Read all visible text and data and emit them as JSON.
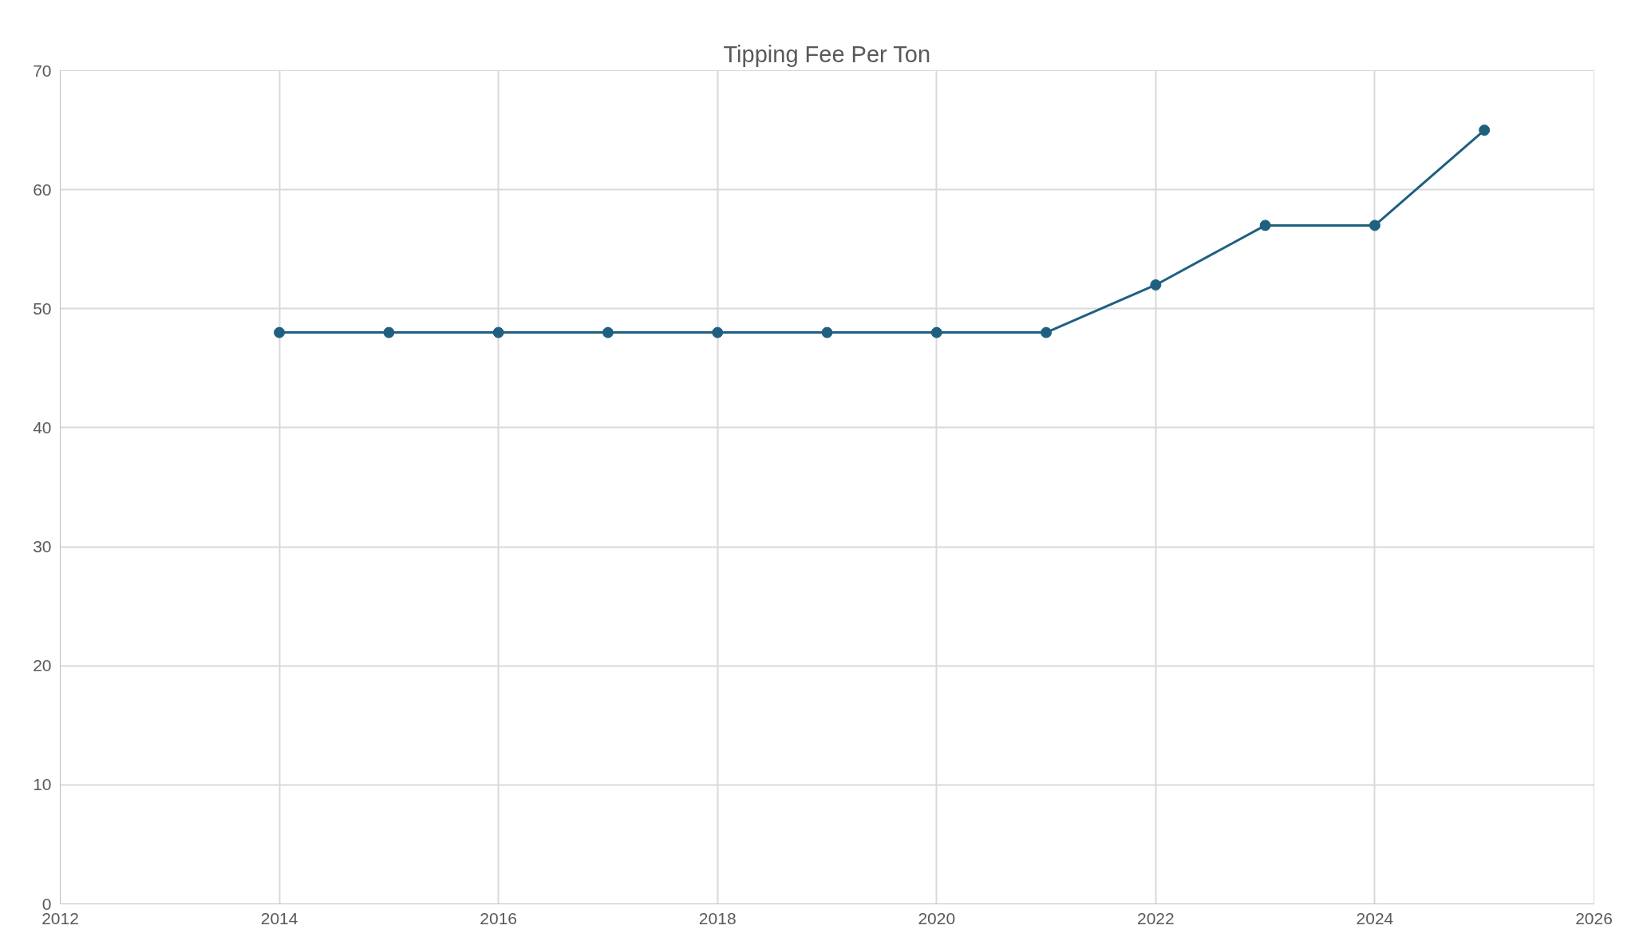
{
  "chart_data": {
    "type": "line",
    "title": "Tipping Fee Per Ton",
    "x": [
      2014,
      2015,
      2016,
      2017,
      2018,
      2019,
      2020,
      2021,
      2022,
      2023,
      2024,
      2025
    ],
    "series": [
      {
        "color": "#1f6080",
        "values": [
          48,
          48,
          48,
          48,
          48,
          48,
          48,
          48,
          52,
          57,
          57,
          65
        ]
      }
    ],
    "xlim": [
      2012,
      2026
    ],
    "xticks": [
      2012,
      2014,
      2016,
      2018,
      2020,
      2022,
      2024,
      2026
    ],
    "ylim": [
      0,
      70
    ],
    "yticks": [
      0,
      10,
      20,
      30,
      40,
      50,
      60,
      70
    ],
    "grid": true,
    "marker": "circle",
    "line_style": "solid"
  }
}
